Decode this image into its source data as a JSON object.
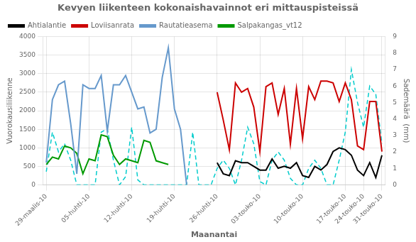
{
  "chart_data": {
    "type": "line",
    "title": "Kevyen liikenteen kokonaishavainnot eri mittauspisteissä",
    "xlabel": "Maanantai",
    "ylabel": "Vuorokausiliikenne",
    "y2label": "Sademäärä  (mm)",
    "categories": [
      "29-maalis-10",
      null,
      null,
      null,
      null,
      null,
      null,
      "05-huhti-10",
      null,
      null,
      null,
      null,
      null,
      null,
      "12-huhti-10",
      null,
      null,
      null,
      null,
      null,
      null,
      "19-huhti-10",
      null,
      null,
      null,
      null,
      null,
      null,
      "26-huhti-10",
      null,
      null,
      null,
      null,
      null,
      null,
      "03-touko-10",
      null,
      null,
      null,
      null,
      null,
      null,
      "10-touko-10",
      null,
      null,
      null,
      null,
      null,
      null,
      "17-touko-10",
      null,
      null,
      "24-touko-10",
      null,
      null,
      "31-touko-10"
    ],
    "series": [
      {
        "name": "Ahtialantie",
        "color": "#000000",
        "values": [
          null,
          null,
          null,
          null,
          null,
          null,
          null,
          null,
          null,
          null,
          null,
          null,
          null,
          null,
          null,
          null,
          null,
          null,
          null,
          null,
          null,
          null,
          null,
          null,
          null,
          null,
          null,
          null,
          600,
          300,
          250,
          650,
          600,
          600,
          500,
          400,
          400,
          700,
          450,
          500,
          450,
          600,
          250,
          200,
          500,
          400,
          550,
          900,
          1000,
          950,
          800,
          400,
          250,
          600,
          200,
          800
        ]
      },
      {
        "name": "Loviisanrata",
        "color": "#CC0000",
        "values": [
          null,
          null,
          null,
          null,
          null,
          null,
          null,
          null,
          null,
          null,
          null,
          null,
          null,
          null,
          null,
          null,
          null,
          null,
          null,
          null,
          null,
          null,
          null,
          null,
          null,
          null,
          null,
          null,
          2500,
          1750,
          950,
          2750,
          2500,
          2600,
          2100,
          900,
          2650,
          2750,
          1900,
          2600,
          1100,
          2600,
          1250,
          2650,
          2300,
          2800,
          2800,
          2750,
          2250,
          2750,
          2300,
          1050,
          950,
          2250,
          2250,
          900
        ]
      },
      {
        "name": "Rautatieasema",
        "color": "#6699CC",
        "values": [
          600,
          2300,
          2700,
          2800,
          1650,
          300,
          2700,
          2600,
          2600,
          2950,
          1450,
          2700,
          2700,
          2950,
          2500,
          2050,
          2100,
          1400,
          1500,
          2900,
          3700,
          2050,
          1500,
          0,
          null,
          null,
          null,
          null,
          null,
          null,
          null,
          null,
          null,
          null,
          null,
          null,
          null,
          null,
          null,
          null,
          null,
          null,
          null,
          null,
          null,
          null,
          null,
          null,
          null,
          null,
          null,
          null,
          null,
          null,
          null,
          null
        ]
      },
      {
        "name": "Salpakangas_vt12",
        "color": "#009900",
        "values": [
          550,
          750,
          700,
          1050,
          1000,
          850,
          300,
          700,
          650,
          1350,
          1300,
          800,
          550,
          700,
          650,
          600,
          1200,
          1150,
          650,
          600,
          550,
          null,
          null,
          null,
          null,
          null,
          null,
          null,
          null,
          null,
          null,
          null,
          null,
          null,
          null,
          null,
          null,
          null,
          null,
          null,
          null,
          null,
          null,
          null,
          null,
          null,
          null,
          null,
          null,
          null,
          null,
          null,
          null,
          null,
          null,
          null
        ]
      },
      {
        "color": "#00CCCC",
        "axis": "y2",
        "line_style": "dashed",
        "values": [
          0.8,
          3.2,
          2.0,
          2.5,
          1.5,
          0,
          0,
          0,
          0,
          3.2,
          3.4,
          1.5,
          0,
          0.5,
          3.5,
          0.3,
          0,
          0,
          0,
          0,
          0,
          0,
          0,
          0,
          3.2,
          0,
          0,
          0,
          1.0,
          1.5,
          1.0,
          0,
          1.5,
          3.5,
          2.5,
          0.2,
          0,
          1.5,
          2.0,
          1.5,
          0.4,
          0,
          0,
          1.0,
          1.5,
          1.0,
          0,
          0,
          1.5,
          3.2,
          7.0,
          5.0,
          3.5,
          6.0,
          5.5,
          2.5
        ]
      }
    ],
    "ylim": [
      0,
      4000
    ],
    "yticks": [
      0,
      500,
      1000,
      1500,
      2000,
      2500,
      3000,
      3500,
      4000
    ],
    "y2lim": [
      0,
      9
    ],
    "y2ticks": [
      0,
      1,
      2,
      3,
      4,
      5,
      6,
      7,
      8,
      9
    ],
    "grid": true,
    "legend": "upper left"
  }
}
